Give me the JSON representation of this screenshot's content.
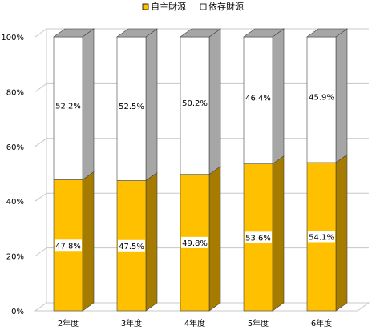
{
  "chart_data": {
    "type": "bar",
    "stacked": true,
    "percent_stacked": true,
    "style": "3d-column",
    "categories": [
      "2年度",
      "3年度",
      "4年度",
      "5年度",
      "6年度"
    ],
    "series": [
      {
        "name": "自主財源",
        "values": [
          47.8,
          47.5,
          49.8,
          53.6,
          54.1
        ],
        "labels": [
          "47.8%",
          "47.5%",
          "49.8%",
          "53.6%",
          "54.1%"
        ],
        "color": "#FFC000",
        "side_color": "#A67C00",
        "top_color": "#D9A400"
      },
      {
        "name": "依存財源",
        "values": [
          52.2,
          52.5,
          50.2,
          46.4,
          45.9
        ],
        "labels": [
          "52.2%",
          "52.5%",
          "50.2%",
          "46.4%",
          "45.9%"
        ],
        "color": "#FFFFFF",
        "side_color": "#A6A6A6",
        "top_color": "#A6A6A6"
      }
    ],
    "y_ticks": [
      "0%",
      "20%",
      "40%",
      "60%",
      "80%",
      "100%"
    ],
    "ylim": [
      0,
      100
    ],
    "gridlines": true,
    "legend_position": "top"
  }
}
